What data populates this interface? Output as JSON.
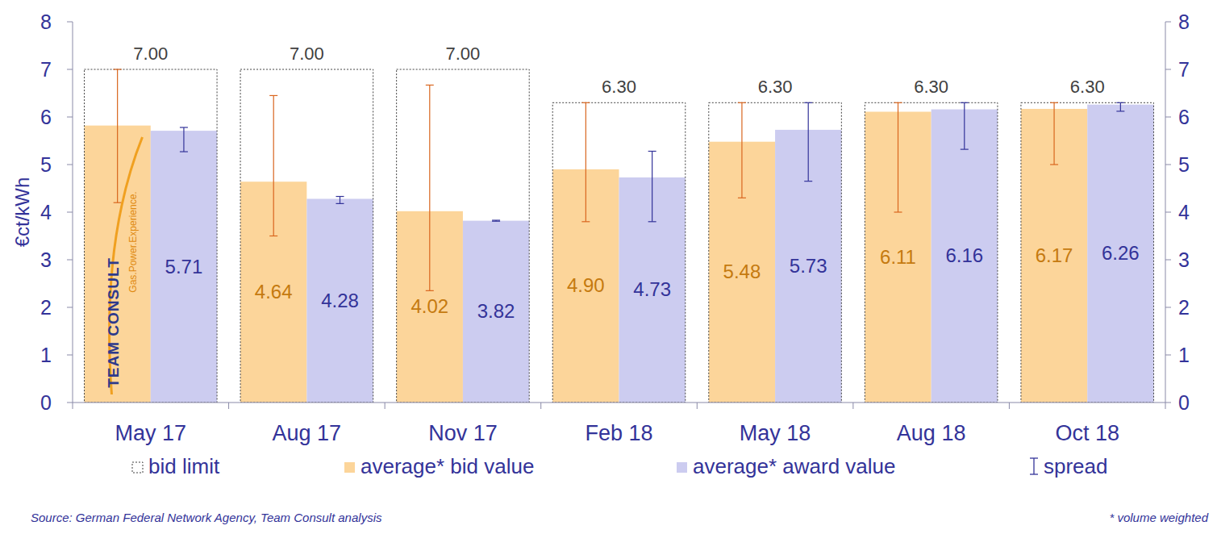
{
  "chart_data": {
    "type": "bar",
    "y_label": "€ct/kWh",
    "categories": [
      "May 17",
      "Aug 17",
      "Nov 17",
      "Feb 18",
      "May 18",
      "Aug 18",
      "Oct 18"
    ],
    "series": [
      {
        "name": "bid limit",
        "type": "outline",
        "line_style": "dashed",
        "color": "#404040",
        "values": [
          7,
          7,
          7,
          6.3,
          6.3,
          6.3,
          6.3
        ],
        "value_labels": [
          "7.00",
          "7.00",
          "7.00",
          "6.30",
          "6.30",
          "6.30",
          "6.30"
        ]
      },
      {
        "name": "average* bid value",
        "type": "bar",
        "color": "#fcd59a",
        "values": [
          5.82,
          4.64,
          4.02,
          4.9,
          5.48,
          6.11,
          6.17
        ],
        "value_labels": [
          null,
          "4.64",
          "4.02",
          "4.90",
          "5.48",
          "6.11",
          "6.17"
        ],
        "spread_low": [
          4.2,
          3.5,
          2.35,
          3.8,
          4.3,
          4.0,
          5.0
        ],
        "spread_high": [
          7.0,
          6.45,
          6.67,
          6.3,
          6.3,
          6.3,
          6.3
        ]
      },
      {
        "name": "average* award value",
        "type": "bar",
        "color": "#ccccf0",
        "values": [
          5.71,
          4.28,
          3.82,
          4.73,
          5.73,
          6.16,
          6.26
        ],
        "value_labels": [
          "5.71",
          "4.28",
          "3.82",
          "4.73",
          "5.73",
          "6.16",
          "6.26"
        ],
        "spread_low": [
          5.27,
          4.18,
          3.81,
          3.8,
          4.65,
          5.32,
          6.12
        ],
        "spread_high": [
          5.78,
          4.33,
          3.83,
          5.28,
          6.3,
          6.3,
          6.3
        ]
      }
    ],
    "spread_legend": "spread",
    "data_labels": true,
    "grid": false,
    "legend": "bottom",
    "ylim": [
      0,
      8
    ],
    "yticks": [
      0,
      1,
      2,
      3,
      4,
      5,
      6,
      7,
      8
    ],
    "y2lim": [
      0,
      8
    ],
    "y2ticks": [
      0,
      1,
      2,
      3,
      4,
      5,
      6,
      7,
      8
    ],
    "annotations": [
      "Source: German Federal Network Agency, Team Consult analysis",
      "* volume weighted",
      "TEAM CONSULT",
      "Gas.Power.Experience."
    ]
  }
}
